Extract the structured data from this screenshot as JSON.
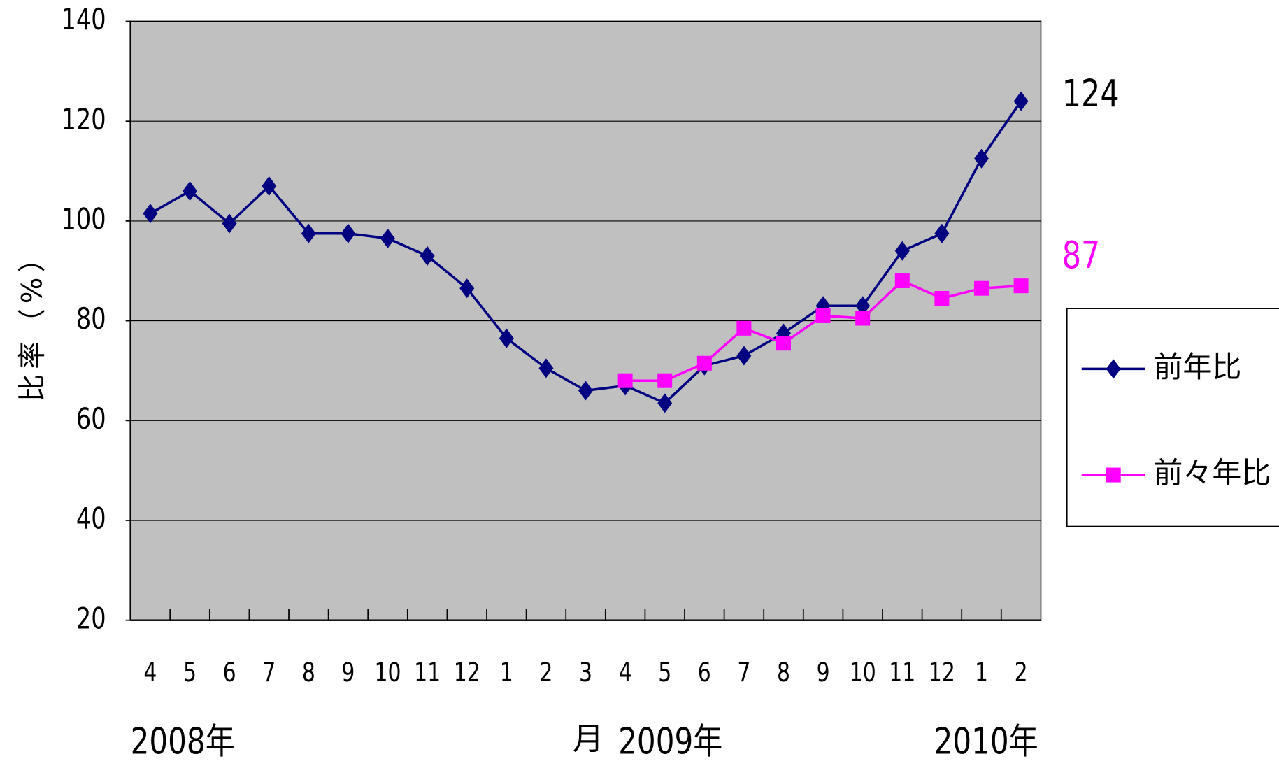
{
  "chart_data": {
    "type": "line",
    "y_label": "比率（%）",
    "categories": [
      "4",
      "5",
      "6",
      "7",
      "8",
      "9",
      "10",
      "11",
      "12",
      "1",
      "2",
      "3",
      "4",
      "5",
      "6",
      "7",
      "8",
      "9",
      "10",
      "11",
      "12",
      "1",
      "2"
    ],
    "x_unit": "月",
    "year_labels": [
      "2008年",
      "2009年",
      "2010年"
    ],
    "series": [
      {
        "name": "前年比",
        "color": "#000080",
        "marker": "diamond",
        "values": [
          101.5,
          106,
          99.5,
          107,
          97.5,
          97.5,
          96.5,
          93,
          86.5,
          76.5,
          70.5,
          66,
          67,
          63.5,
          71,
          73,
          77.5,
          83,
          83,
          94,
          97.5,
          112.5,
          124
        ]
      },
      {
        "name": "前々年比",
        "color": "#ff00ff",
        "marker": "square",
        "values": [
          null,
          null,
          null,
          null,
          null,
          null,
          null,
          null,
          null,
          null,
          null,
          null,
          68,
          68,
          71.5,
          78.5,
          75.5,
          81,
          80.5,
          88,
          84.5,
          86.5,
          87
        ]
      }
    ],
    "ylim": [
      20,
      140
    ],
    "yticks": [
      20,
      40,
      60,
      80,
      100,
      120,
      140
    ],
    "grid": true,
    "plot_background": "#c0c0c0",
    "legend": "right"
  }
}
